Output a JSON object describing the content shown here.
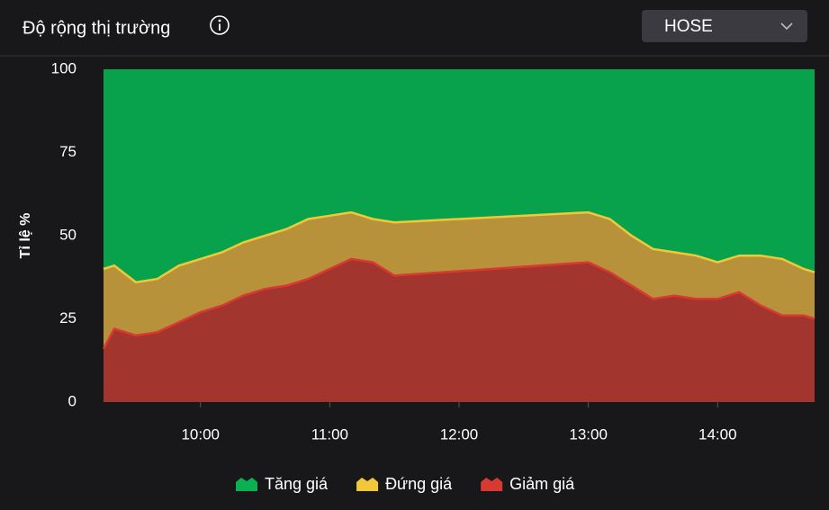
{
  "chart_data": {
    "type": "stacked_area",
    "title": "Độ rộng thị trường",
    "market_selector": "HOSE",
    "ylabel": "Tỉ lệ %",
    "x": [
      "09:15",
      "09:20",
      "09:30",
      "09:40",
      "09:50",
      "10:00",
      "10:10",
      "10:20",
      "10:30",
      "10:40",
      "10:50",
      "11:00",
      "11:10",
      "11:20",
      "11:30",
      "13:00",
      "13:10",
      "13:20",
      "13:30",
      "13:40",
      "13:50",
      "14:00",
      "14:10",
      "14:20",
      "14:30",
      "14:40",
      "14:45"
    ],
    "xlim": [
      "09:15",
      "14:45"
    ],
    "xticks": [
      "10:00",
      "11:00",
      "12:00",
      "13:00",
      "14:00"
    ],
    "ylim": [
      0,
      100
    ],
    "yticks": [
      0,
      25,
      50,
      75,
      100
    ],
    "series": [
      {
        "name": "Tăng giá",
        "color": "#07a24b",
        "line_color": "#0bb052",
        "values": [
          60,
          59,
          64,
          63,
          59,
          57,
          55,
          52,
          50,
          48,
          45,
          44,
          43,
          45,
          46,
          43,
          45,
          50,
          54,
          55,
          56,
          58,
          56,
          56,
          57,
          60,
          61
        ]
      },
      {
        "name": "Đứng giá",
        "color": "#b8923a",
        "line_color": "#f0c83a",
        "values": [
          24,
          19,
          16,
          16,
          17,
          16,
          16,
          16,
          16,
          17,
          18,
          16,
          14,
          13,
          16,
          15,
          16,
          15,
          15,
          13,
          13,
          11,
          11,
          15,
          17,
          14,
          14
        ]
      },
      {
        "name": "Giảm giá",
        "color": "#a3352f",
        "line_color": "#d83a33",
        "values": [
          16,
          22,
          20,
          21,
          24,
          27,
          29,
          32,
          34,
          35,
          37,
          40,
          43,
          42,
          38,
          42,
          39,
          35,
          31,
          32,
          31,
          31,
          33,
          29,
          26,
          26,
          25
        ]
      }
    ]
  }
}
